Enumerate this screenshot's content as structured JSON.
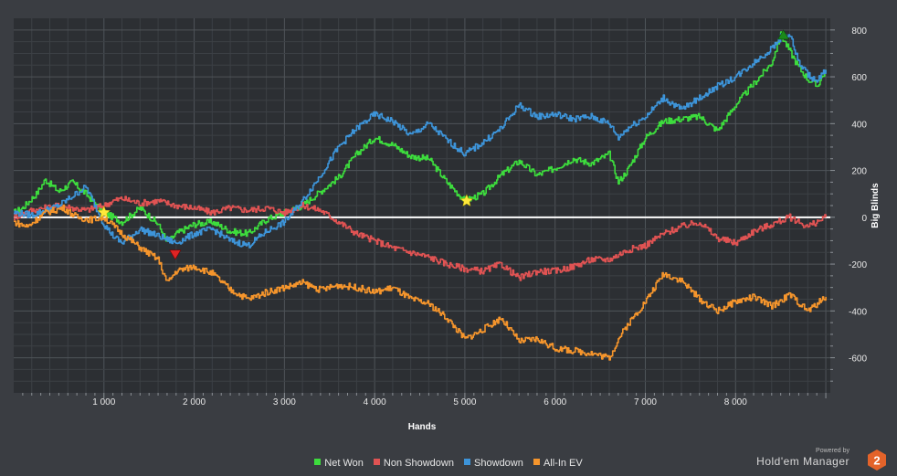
{
  "chart_data": {
    "type": "line",
    "xlabel": "Hands",
    "ylabel": "Big Blinds",
    "xlim": [
      0,
      9050
    ],
    "ylim": [
      -750,
      850
    ],
    "x_ticks": [
      1000,
      2000,
      3000,
      4000,
      5000,
      6000,
      7000,
      8000
    ],
    "x_tick_labels": [
      "1 000",
      "2 000",
      "3 000",
      "4 000",
      "5 000",
      "6 000",
      "7 000",
      "8 000"
    ],
    "y_ticks": [
      800,
      600,
      400,
      200,
      0,
      -200,
      -400,
      -600
    ],
    "y_tick_labels": [
      "800",
      "600",
      "400",
      "200",
      "0",
      "-200",
      "-400",
      "-600"
    ],
    "grid": true,
    "legend_position": "bottom",
    "series": [
      {
        "name": "Net Won",
        "color": "#3ddc3d",
        "x": [
          0,
          100,
          250,
          350,
          500,
          650,
          800,
          1000,
          1200,
          1400,
          1600,
          1700,
          1800,
          2000,
          2200,
          2400,
          2600,
          2800,
          3000,
          3200,
          3400,
          3600,
          3800,
          4000,
          4200,
          4400,
          4600,
          4800,
          4900,
          5000,
          5200,
          5400,
          5600,
          5800,
          6000,
          6200,
          6400,
          6600,
          6700,
          6800,
          7000,
          7200,
          7400,
          7600,
          7800,
          8000,
          8200,
          8400,
          8500,
          8600,
          8700,
          8800,
          8900,
          9000
        ],
        "y": [
          20,
          40,
          100,
          160,
          110,
          150,
          100,
          20,
          -20,
          40,
          -30,
          -110,
          -70,
          -30,
          -20,
          -60,
          -70,
          -10,
          20,
          50,
          110,
          170,
          270,
          340,
          310,
          260,
          250,
          150,
          110,
          70,
          100,
          180,
          240,
          180,
          210,
          250,
          230,
          270,
          150,
          200,
          340,
          410,
          420,
          430,
          370,
          480,
          570,
          660,
          780,
          710,
          640,
          590,
          560,
          630
        ]
      },
      {
        "name": "Non Showdown",
        "color": "#e05353",
        "x": [
          0,
          200,
          500,
          800,
          1000,
          1100,
          1200,
          1400,
          1600,
          1800,
          2000,
          2200,
          2400,
          2600,
          2800,
          3000,
          3200,
          3400,
          3600,
          3800,
          4000,
          4200,
          4400,
          4600,
          4800,
          5000,
          5200,
          5400,
          5600,
          5800,
          6000,
          6200,
          6400,
          6600,
          6800,
          7000,
          7200,
          7400,
          7600,
          7800,
          8000,
          8200,
          8400,
          8600,
          8800,
          9000
        ],
        "y": [
          0,
          30,
          50,
          30,
          50,
          70,
          80,
          60,
          70,
          50,
          40,
          20,
          40,
          30,
          40,
          20,
          50,
          30,
          -20,
          -70,
          -100,
          -130,
          -150,
          -170,
          -200,
          -220,
          -230,
          -200,
          -260,
          -230,
          -230,
          -210,
          -180,
          -180,
          -140,
          -120,
          -70,
          -40,
          -20,
          -90,
          -110,
          -60,
          -30,
          0,
          -40,
          0
        ]
      },
      {
        "name": "Showdown",
        "color": "#3d94d9",
        "x": [
          0,
          200,
          500,
          800,
          1000,
          1100,
          1200,
          1400,
          1600,
          1800,
          2000,
          2200,
          2400,
          2600,
          2800,
          3000,
          3200,
          3400,
          3600,
          3800,
          4000,
          4200,
          4400,
          4600,
          4800,
          5000,
          5200,
          5400,
          5600,
          5800,
          6000,
          6200,
          6400,
          6600,
          6700,
          6800,
          7000,
          7200,
          7400,
          7600,
          7800,
          8000,
          8200,
          8400,
          8500,
          8600,
          8700,
          8800,
          8900,
          9000
        ],
        "y": [
          20,
          10,
          50,
          130,
          -30,
          -80,
          -110,
          -50,
          -80,
          -110,
          -70,
          -50,
          -100,
          -120,
          -60,
          -20,
          70,
          180,
          300,
          380,
          440,
          410,
          350,
          400,
          330,
          270,
          320,
          380,
          480,
          430,
          440,
          420,
          430,
          400,
          340,
          380,
          430,
          510,
          460,
          510,
          560,
          600,
          660,
          720,
          770,
          780,
          660,
          610,
          580,
          630
        ]
      },
      {
        "name": "All-In EV",
        "color": "#f5952c",
        "x": [
          0,
          150,
          350,
          550,
          700,
          850,
          1000,
          1200,
          1400,
          1600,
          1700,
          1800,
          2000,
          2200,
          2400,
          2600,
          2800,
          3000,
          3200,
          3400,
          3600,
          3800,
          4000,
          4200,
          4400,
          4600,
          4800,
          5000,
          5200,
          5400,
          5600,
          5800,
          6000,
          6200,
          6400,
          6600,
          6700,
          6800,
          7000,
          7200,
          7400,
          7600,
          7800,
          8000,
          8200,
          8400,
          8600,
          8800,
          9000
        ],
        "y": [
          -20,
          -40,
          20,
          40,
          0,
          -10,
          0,
          -70,
          -130,
          -180,
          -280,
          -230,
          -210,
          -240,
          -310,
          -350,
          -320,
          -300,
          -280,
          -310,
          -290,
          -300,
          -320,
          -300,
          -350,
          -370,
          -430,
          -520,
          -480,
          -430,
          -530,
          -520,
          -560,
          -570,
          -580,
          -600,
          -520,
          -460,
          -360,
          -240,
          -270,
          -350,
          -400,
          -360,
          -340,
          -380,
          -330,
          -400,
          -340
        ]
      }
    ],
    "markers": [
      {
        "type": "star",
        "color": "#ffe83b",
        "x": 1000,
        "y": 20
      },
      {
        "type": "star",
        "color": "#ffe83b",
        "x": 5020,
        "y": 70
      },
      {
        "type": "triangle-down",
        "color": "#e02424",
        "x": 1790,
        "y": -160
      },
      {
        "type": "triangle-up",
        "color": "#1a8a1a",
        "x": 8530,
        "y": 780
      }
    ]
  },
  "legend": {
    "items": [
      {
        "label": "Net Won",
        "color": "#3ddc3d"
      },
      {
        "label": "Non Showdown",
        "color": "#e05353"
      },
      {
        "label": "Showdown",
        "color": "#3d94d9"
      },
      {
        "label": "All-In EV",
        "color": "#f5952c"
      }
    ]
  },
  "branding": {
    "powered_by": "Powered by",
    "product": "Hold'em Manager",
    "version": "2",
    "badge_color": "#e3632a"
  }
}
